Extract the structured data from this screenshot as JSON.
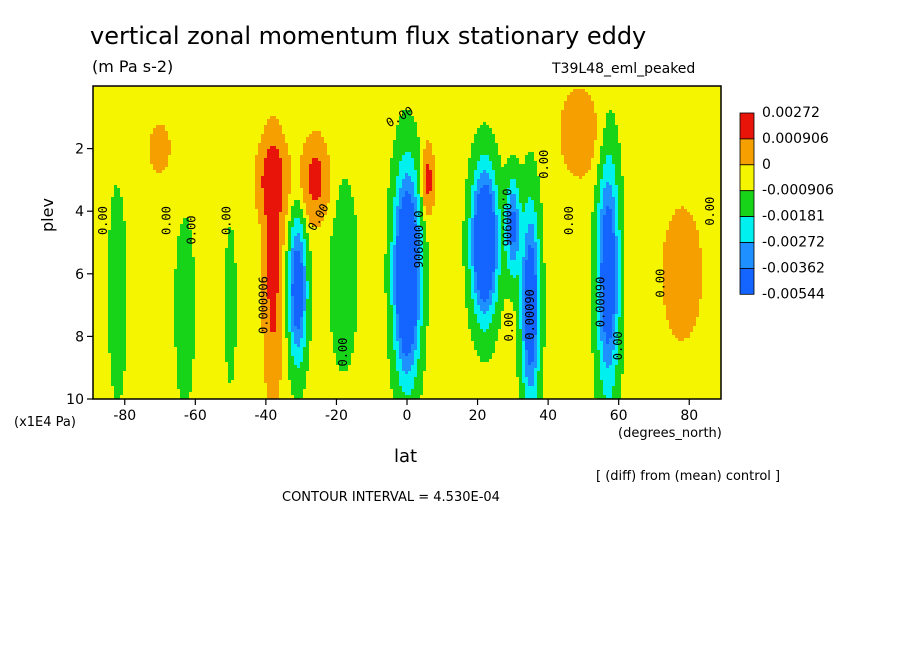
{
  "title": "vertical zonal momentum flux stationary eddy",
  "units": "(m Pa s-2)",
  "run_label": "T39L48_eml_peaked",
  "footnote_diff": "[ (diff) from (mean) control ]",
  "contour_interval": "CONTOUR INTERVAL = 4.530E-04",
  "colors": {
    "red": "#e8140a",
    "orange": "#f5a000",
    "yellow": "#f5f500",
    "green": "#18d418",
    "cyan": "#00f0f0",
    "blue_light": "#1e90ff",
    "blue": "#1464ff"
  },
  "chart_data": {
    "type": "heatmap",
    "xlabel": "lat",
    "x_unit_label": "(degrees_north)",
    "ylabel": "plev",
    "y_unit_label": "(x1E4 Pa)",
    "xlim": [
      -89,
      89
    ],
    "ylim": [
      0,
      10
    ],
    "y_inverted": true,
    "x_ticks": [
      -80,
      -60,
      -40,
      -20,
      0,
      20,
      40,
      60,
      80
    ],
    "x_tick_labels": [
      "-80",
      "-60",
      "-40",
      "-20",
      "0",
      "20",
      "40",
      "60",
      "80"
    ],
    "y_ticks": [
      2,
      4,
      6,
      8,
      10
    ],
    "y_tick_labels": [
      "2",
      "4",
      "6",
      "8",
      "10"
    ],
    "legend_placement": "right",
    "colorbar_labels": [
      "0.00272",
      "0.000906",
      "0",
      "-0.000906",
      "-0.00181",
      "-0.00272",
      "-0.00362",
      "-0.00544"
    ],
    "background_level": 0.0003,
    "features": [
      {
        "lat": -82,
        "p": 6.5,
        "wlat": 3,
        "wp": 4.0,
        "amp": -0.0007
      },
      {
        "lat": -63,
        "p": 7.0,
        "wlat": 3,
        "wp": 3.5,
        "amp": -0.00075
      },
      {
        "lat": -50,
        "p": 7.0,
        "wlat": 2,
        "wp": 3.0,
        "amp": -0.0006
      },
      {
        "lat": -38,
        "p": 3.0,
        "wlat": 4,
        "wp": 1.2,
        "amp": 0.0036
      },
      {
        "lat": -38,
        "p": 6.0,
        "wlat": 2.5,
        "wp": 3.5,
        "amp": 0.0033
      },
      {
        "lat": -26,
        "p": 3.0,
        "wlat": 3.5,
        "wp": 1.2,
        "amp": 0.0034
      },
      {
        "lat": -31,
        "p": 6.5,
        "wlat": 2.5,
        "wp": 2.2,
        "amp": -0.0043
      },
      {
        "lat": -18,
        "p": 6.0,
        "wlat": 4,
        "wp": 3.0,
        "amp": -0.0009
      },
      {
        "lat": 0,
        "p": 6.0,
        "wlat": 3.5,
        "wp": 3.0,
        "amp": -0.0065
      },
      {
        "lat": 6,
        "p": 3.0,
        "wlat": 1.5,
        "wp": 1.0,
        "amp": 0.0034
      },
      {
        "lat": 22,
        "p": 5.0,
        "wlat": 3.5,
        "wp": 2.2,
        "amp": -0.0062
      },
      {
        "lat": 30,
        "p": 4.5,
        "wlat": 2,
        "wp": 1.5,
        "amp": -0.0034
      },
      {
        "lat": 35,
        "p": 7.0,
        "wlat": 2.5,
        "wp": 3.0,
        "amp": -0.0046
      },
      {
        "lat": 57,
        "p": 6.0,
        "wlat": 3,
        "wp": 3.5,
        "amp": -0.0045
      },
      {
        "lat": 49,
        "p": 1.5,
        "wlat": 6,
        "wp": 1.5,
        "amp": 0.0015
      },
      {
        "lat": 78,
        "p": 6.0,
        "wlat": 8,
        "wp": 3.0,
        "amp": 0.001
      },
      {
        "lat": -70,
        "p": 2.0,
        "wlat": 8,
        "wp": 2.0,
        "amp": 0.0007
      }
    ],
    "contour_labels": [
      {
        "text": "0.00",
        "lat": -86,
        "p": 4.3,
        "rotate": -90
      },
      {
        "text": "0.00",
        "lat": -68,
        "p": 4.3,
        "rotate": -90
      },
      {
        "text": "0.00",
        "lat": -61,
        "p": 4.6,
        "rotate": -90
      },
      {
        "text": "0.00",
        "lat": -51,
        "p": 4.3,
        "rotate": -90
      },
      {
        "text": "0.000906",
        "lat": -40.5,
        "p": 7.0,
        "rotate": -90
      },
      {
        "text": "0.00",
        "lat": -25,
        "p": 4.2,
        "rotate": -60
      },
      {
        "text": "0.00",
        "lat": -18,
        "p": 8.5,
        "rotate": -90
      },
      {
        "text": "0.00",
        "lat": -2,
        "p": 1.0,
        "rotate": -30
      },
      {
        "text": "0.000906",
        "lat": 3,
        "p": 4.9,
        "rotate": 90
      },
      {
        "text": "0.000906",
        "lat": 28,
        "p": 4.2,
        "rotate": 90
      },
      {
        "text": "0.00",
        "lat": 29,
        "p": 7.7,
        "rotate": -90
      },
      {
        "text": "0.00090",
        "lat": 35,
        "p": 7.3,
        "rotate": -90
      },
      {
        "text": "0.00",
        "lat": 39,
        "p": 2.5,
        "rotate": -90
      },
      {
        "text": "0.00",
        "lat": 46,
        "p": 4.3,
        "rotate": -90
      },
      {
        "text": "0.00090",
        "lat": 55,
        "p": 6.9,
        "rotate": -90
      },
      {
        "text": "0.00",
        "lat": 60,
        "p": 8.3,
        "rotate": -90
      },
      {
        "text": "0.00",
        "lat": 72,
        "p": 6.3,
        "rotate": -90
      },
      {
        "text": "0.00",
        "lat": 86,
        "p": 4.0,
        "rotate": -90
      }
    ]
  }
}
